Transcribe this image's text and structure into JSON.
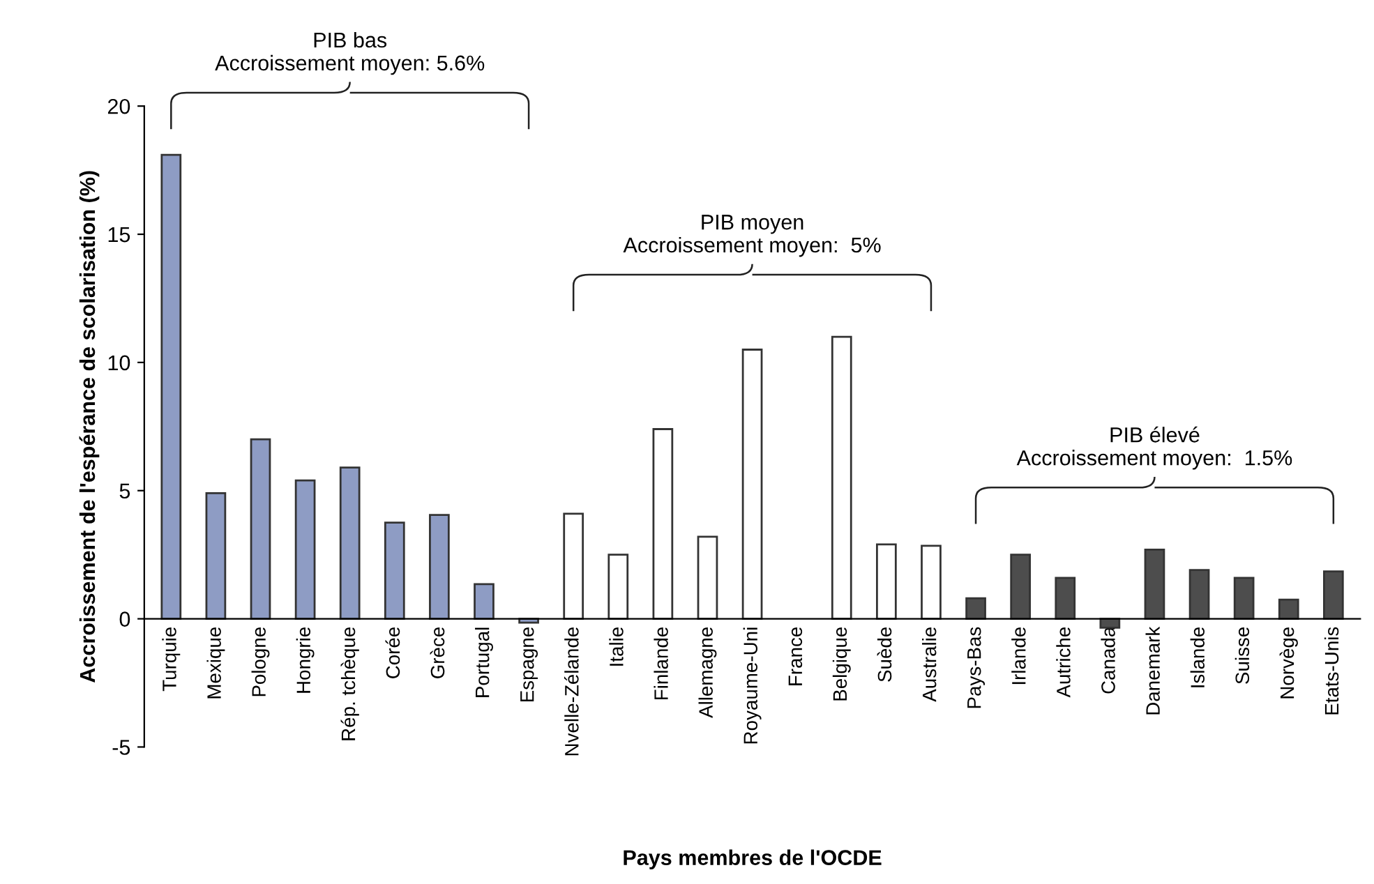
{
  "chart_data": {
    "type": "bar",
    "xlabel": "Pays membres de l'OCDE",
    "ylabel": "Accroissement de l'espérance de scolarisation (%)",
    "categories": [
      "Turquie",
      "Mexique",
      "Pologne",
      "Hongrie",
      "Rép. tchèque",
      "Corée",
      "Grèce",
      "Portugal",
      "Espagne",
      "Nvelle-Zélande",
      "Italie",
      "Finlande",
      "Allemagne",
      "Royaume-Uni",
      "France",
      "Belgique",
      "Suède",
      "Australie",
      "Pays-Bas",
      "Irlande",
      "Autriche",
      "Canada",
      "Danemark",
      "Islande",
      "Suisse",
      "Norvège",
      "Etats-Unis"
    ],
    "values": [
      18.1,
      4.9,
      7.0,
      5.4,
      5.9,
      3.75,
      4.05,
      1.35,
      -0.15,
      4.1,
      2.5,
      7.4,
      3.2,
      10.5,
      null,
      11.0,
      2.9,
      2.85,
      0.8,
      2.5,
      1.6,
      -0.35,
      2.7,
      1.9,
      1.6,
      0.75,
      1.85
    ],
    "colors": [
      "#8e9cc4",
      "#8e9cc4",
      "#8e9cc4",
      "#8e9cc4",
      "#8e9cc4",
      "#8e9cc4",
      "#8e9cc4",
      "#8e9cc4",
      "#8e9cc4",
      "#ffffff",
      "#ffffff",
      "#ffffff",
      "#ffffff",
      "#ffffff",
      "#ffffff",
      "#ffffff",
      "#ffffff",
      "#ffffff",
      "#4d4d4d",
      "#4d4d4d",
      "#4d4d4d",
      "#4d4d4d",
      "#4d4d4d",
      "#4d4d4d",
      "#4d4d4d",
      "#4d4d4d",
      "#4d4d4d"
    ],
    "ylim": [
      -5,
      20
    ],
    "yticks": [
      -5,
      0,
      5,
      10,
      15,
      20
    ],
    "grid": false,
    "legend": false,
    "annotations": [
      "PIB bas\nAccroissement moyen: 5.6%",
      "PIB moyen\nAccroissement moyen:  5%",
      "PIB élevé\nAccroissement moyen:  1.5%"
    ]
  }
}
